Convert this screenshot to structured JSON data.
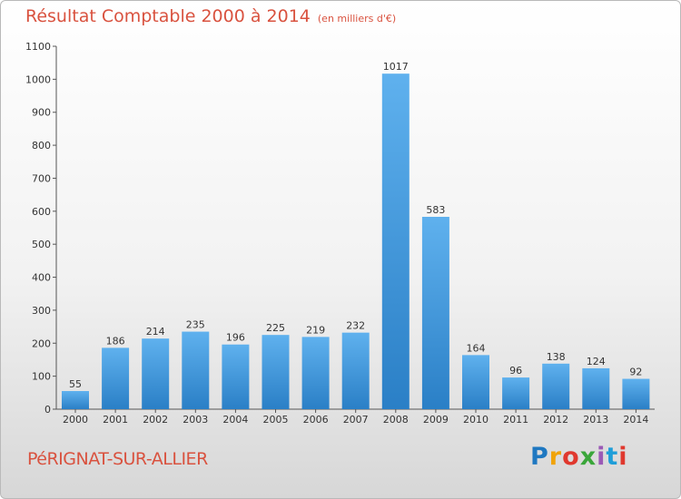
{
  "title": "Résultat Comptable 2000 à 2014",
  "unit": "(en milliers d'€)",
  "commune": "PéRIGNAT-SUR-ALLIER",
  "logo": {
    "letters": [
      "P",
      "r",
      "o",
      "x",
      "i",
      "t",
      "i"
    ]
  },
  "colors": {
    "bar": "#2f8fd6",
    "bar_light": "#63b2ec",
    "title": "#d9523f"
  },
  "chart_data": {
    "type": "bar",
    "categories": [
      "2000",
      "2001",
      "2002",
      "2003",
      "2004",
      "2005",
      "2006",
      "2007",
      "2008",
      "2009",
      "2010",
      "2011",
      "2012",
      "2013",
      "2014"
    ],
    "values": [
      55,
      186,
      214,
      235,
      196,
      225,
      219,
      232,
      1017,
      583,
      164,
      96,
      138,
      124,
      92
    ],
    "yticks": [
      0,
      100,
      200,
      300,
      400,
      500,
      600,
      700,
      800,
      900,
      1000,
      1100
    ],
    "ylim": [
      0,
      1100
    ],
    "grid": false,
    "data_labels": true
  }
}
